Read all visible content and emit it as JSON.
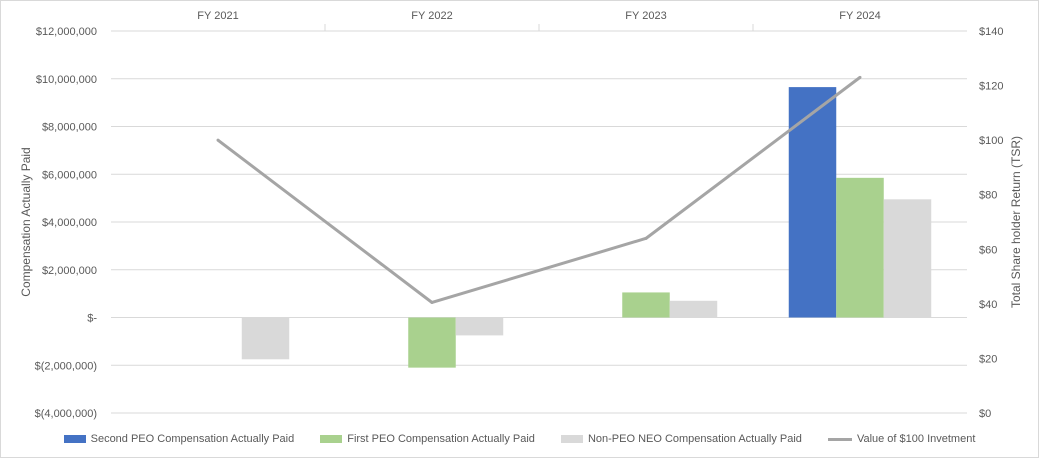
{
  "chart_data": {
    "type": "bar",
    "categories": [
      "FY 2021",
      "FY 2022",
      "FY 2023",
      "FY 2024"
    ],
    "series": [
      {
        "name": "Second PEO Compensation Actually Paid",
        "axis": "left",
        "color": "#4472c4",
        "values": [
          null,
          null,
          null,
          9650000
        ]
      },
      {
        "name": "First PEO Compensation Actually Paid",
        "axis": "left",
        "color": "#a9d18e",
        "values": [
          null,
          -2100000,
          1050000,
          5850000
        ]
      },
      {
        "name": "Non-PEO NEO Compensation Actually Paid",
        "axis": "left",
        "color": "#d9d9d9",
        "values": [
          -1750000,
          -750000,
          700000,
          4950000
        ]
      },
      {
        "name": "Value of $100 Invetment",
        "axis": "right",
        "type": "line",
        "color": "#a5a5a5",
        "values": [
          100,
          40.5,
          64,
          123
        ]
      }
    ],
    "ylabel": "Compensation Actually Paid",
    "y2label": "Total Share holder Return (TSR)",
    "ylim": [
      -4000000,
      12000000
    ],
    "y2lim": [
      0,
      140
    ],
    "yticks": [
      "$12,000,000",
      "$10,000,000",
      "$8,000,000",
      "$6,000,000",
      "$4,000,000",
      "$2,000,000",
      "$-",
      "$(2,000,000)",
      "$(4,000,000)"
    ],
    "y2ticks": [
      "$140",
      "$120",
      "$100",
      "$80",
      "$60",
      "$40",
      "$20",
      "$0"
    ],
    "grid": true,
    "legend": "bottom"
  }
}
